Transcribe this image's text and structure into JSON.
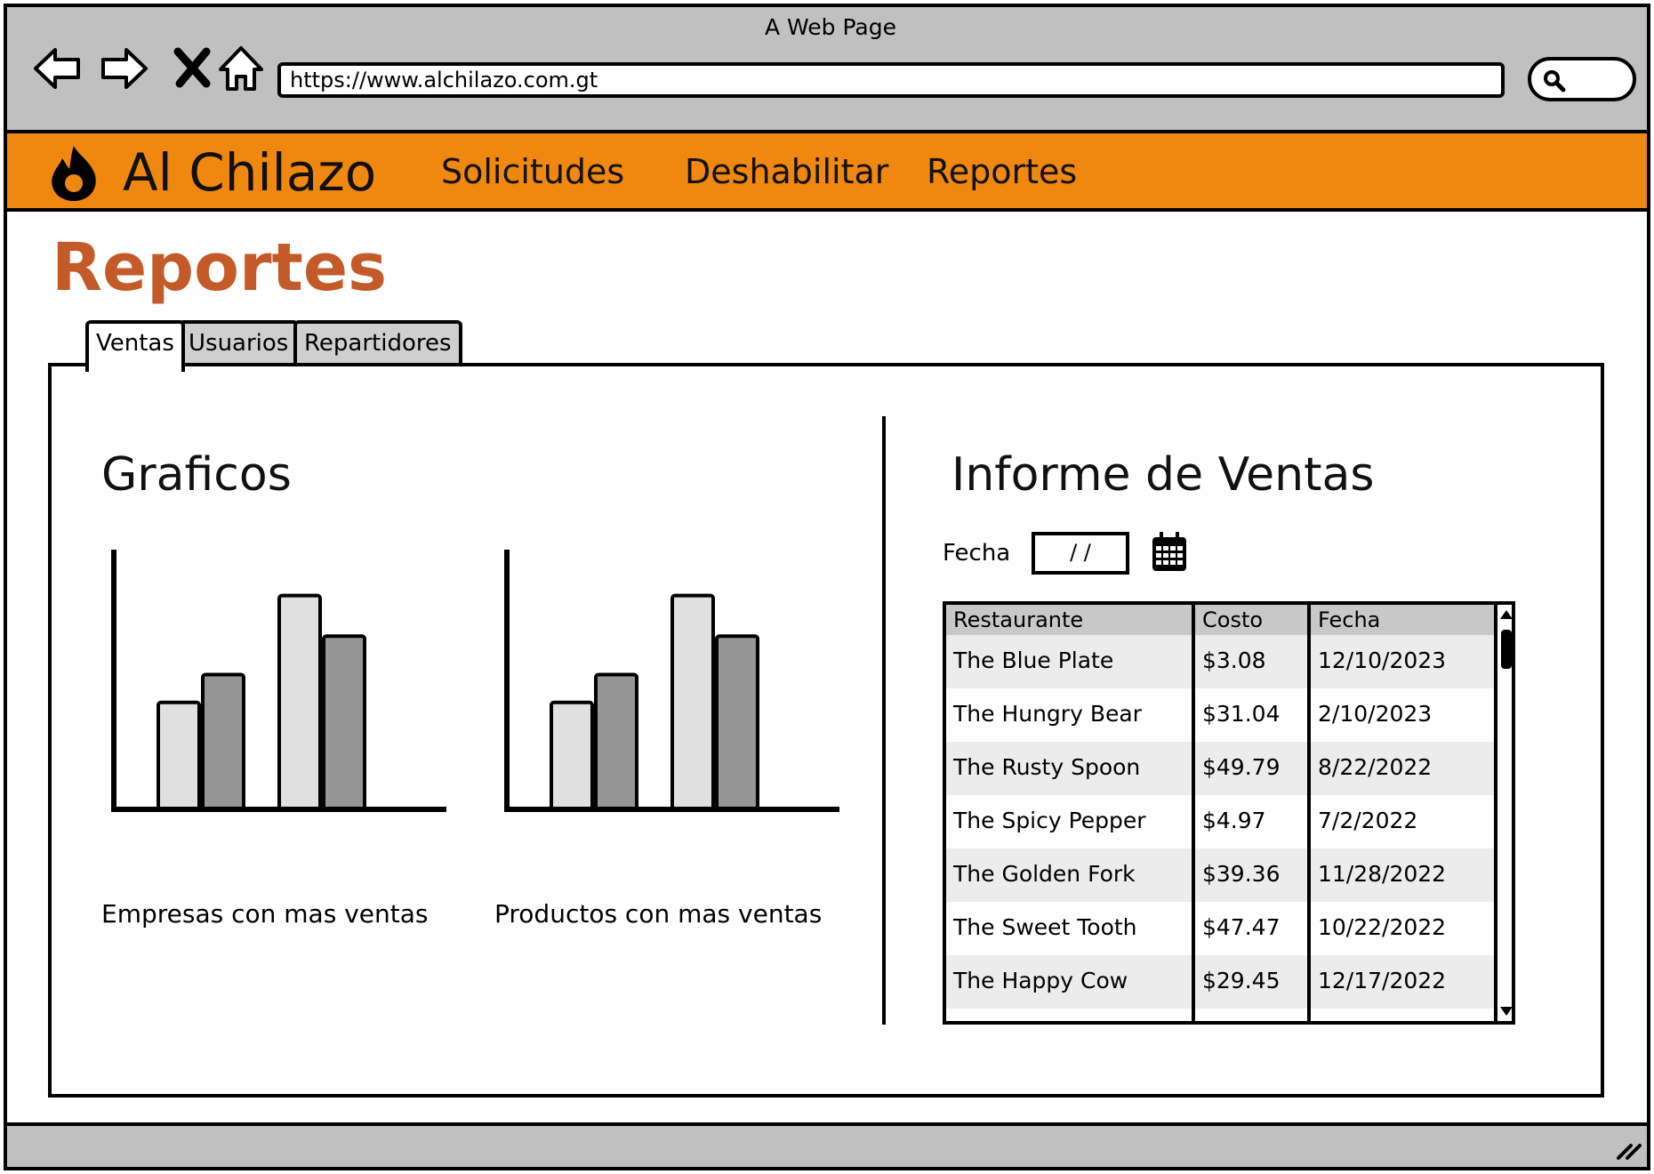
{
  "window": {
    "title": "A Web Page"
  },
  "browser": {
    "url": "https://www.alchilazo.com.gt"
  },
  "navbar": {
    "brand": "Al Chilazo",
    "links": [
      "Solicitudes",
      "Deshabilitar",
      "Reportes"
    ],
    "accent": "#f0870f"
  },
  "page": {
    "title": "Reportes",
    "title_color": "#c45a28"
  },
  "tabs": [
    {
      "label": "Ventas",
      "active": true
    },
    {
      "label": "Usuarios",
      "active": false
    },
    {
      "label": "Repartidores",
      "active": false
    }
  ],
  "charts": {
    "title": "Graficos"
  },
  "chart_data": [
    {
      "type": "bar",
      "title": "",
      "caption": "Empresas con mas ventas",
      "categories": [
        "",
        ""
      ],
      "series": [
        {
          "values": [
            50,
            100
          ],
          "color": "#e0e0e0"
        },
        {
          "values": [
            63,
            81
          ],
          "color": "#959595"
        }
      ],
      "ylim": [
        0,
        104
      ],
      "grid": false
    },
    {
      "type": "bar",
      "title": "",
      "caption": "Productos con mas ventas",
      "categories": [
        "",
        ""
      ],
      "series": [
        {
          "values": [
            50,
            100
          ],
          "color": "#e0e0e0"
        },
        {
          "values": [
            63,
            81
          ],
          "color": "#959595"
        }
      ],
      "ylim": [
        0,
        104
      ],
      "grid": false
    }
  ],
  "report": {
    "title": "Informe de Ventas",
    "date_label": "Fecha",
    "date_value": "/ /",
    "columns": [
      "Restaurante",
      "Costo",
      "Fecha"
    ],
    "rows": [
      [
        "The Blue Plate",
        "$3.08",
        "12/10/2023"
      ],
      [
        "The Hungry Bear",
        "$31.04",
        "2/10/2023"
      ],
      [
        "The Rusty Spoon",
        "$49.79",
        "8/22/2022"
      ],
      [
        "The Spicy Pepper",
        "$4.97",
        "7/2/2022"
      ],
      [
        "The Golden Fork",
        "$39.36",
        "11/28/2022"
      ],
      [
        "The Sweet Tooth",
        "$47.47",
        "10/22/2022"
      ],
      [
        "The Happy Cow",
        "$29.45",
        "12/17/2022"
      ]
    ]
  },
  "icons": {
    "back": "back-arrow-icon",
    "forward": "forward-arrow-icon",
    "stop": "close-icon",
    "home": "home-icon",
    "search": "search-icon",
    "logo": "flame-icon",
    "calendar": "calendar-icon",
    "resize": "resize-grip-icon"
  }
}
